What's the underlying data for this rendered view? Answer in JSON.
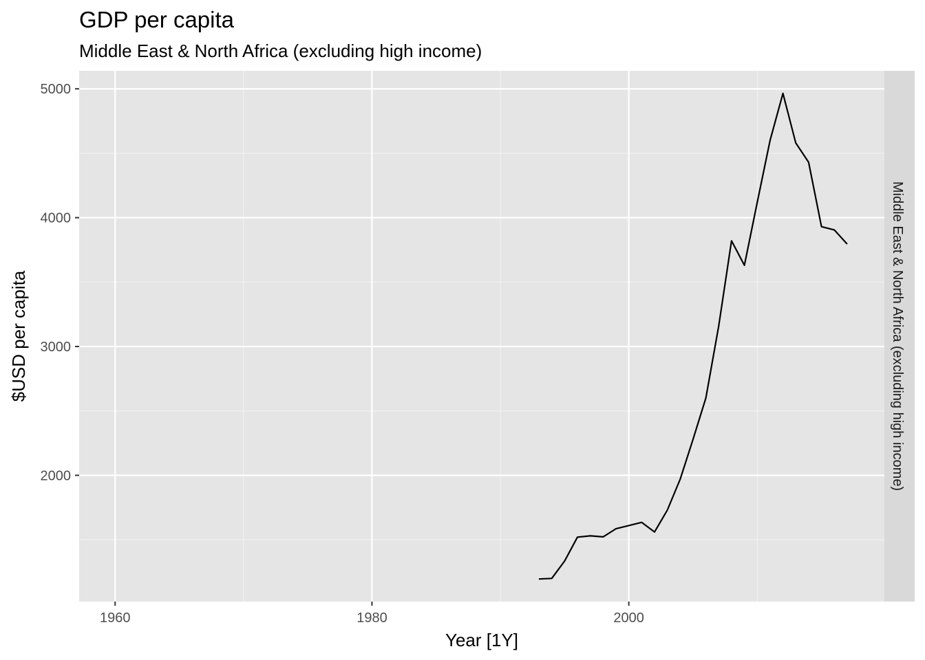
{
  "chart_data": {
    "type": "line",
    "title": "GDP per capita",
    "subtitle": "Middle East & North Africa (excluding high income)",
    "xlabel": "Year [1Y]",
    "ylabel": "$USD per capita",
    "facet_label": "Middle East & North Africa (excluding high income)",
    "xlim": [
      1957.2,
      2019.9
    ],
    "ylim": [
      1020,
      5140
    ],
    "x_ticks": [
      1960,
      1980,
      2000
    ],
    "x_tick_labels": [
      "1960",
      "1980",
      "2000"
    ],
    "y_ticks": [
      2000,
      3000,
      4000,
      5000
    ],
    "y_tick_labels": [
      "2000",
      "3000",
      "4000",
      "5000"
    ],
    "grid": true,
    "line_color": "#000000",
    "panel_color": "#e5e5e5",
    "strip_color": "#d9d9d9",
    "x": [
      1993,
      1994,
      1995,
      1996,
      1997,
      1998,
      1999,
      2000,
      2001,
      2002,
      2003,
      2004,
      2005,
      2006,
      2007,
      2008,
      2009,
      2010,
      2011,
      2012,
      2013,
      2014,
      2015,
      2016,
      2017
    ],
    "values": [
      1195,
      1200,
      1335,
      1520,
      1530,
      1522,
      1585,
      1610,
      1635,
      1560,
      1730,
      1970,
      2280,
      2600,
      3160,
      3820,
      3630,
      4120,
      4600,
      4965,
      4580,
      4430,
      3930,
      3905,
      3795
    ]
  }
}
